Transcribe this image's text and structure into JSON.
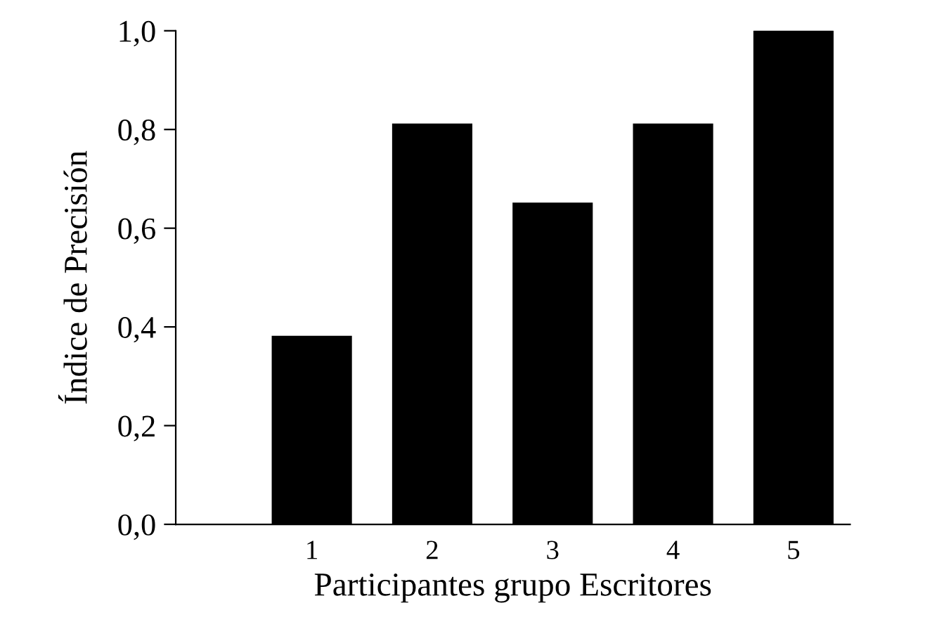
{
  "chart_data": {
    "type": "bar",
    "xlabel": "Participantes grupo Escritores",
    "ylabel": "Índice de Precisión",
    "categories": [
      "1",
      "2",
      "3",
      "4",
      "5"
    ],
    "values": [
      0.38,
      0.81,
      0.65,
      0.81,
      1.0
    ],
    "color": "#000000",
    "ylim": [
      0,
      1.0
    ],
    "yticks": [
      {
        "value": 0,
        "label": "0,0"
      },
      {
        "value": 0.2,
        "label": "0,2"
      },
      {
        "value": 0.4,
        "label": "0,4"
      },
      {
        "value": 0.6,
        "label": "0,6"
      },
      {
        "value": 0.8,
        "label": "0,8"
      },
      {
        "value": 1.0,
        "label": "1,0"
      }
    ],
    "grid": false,
    "legend": false
  }
}
